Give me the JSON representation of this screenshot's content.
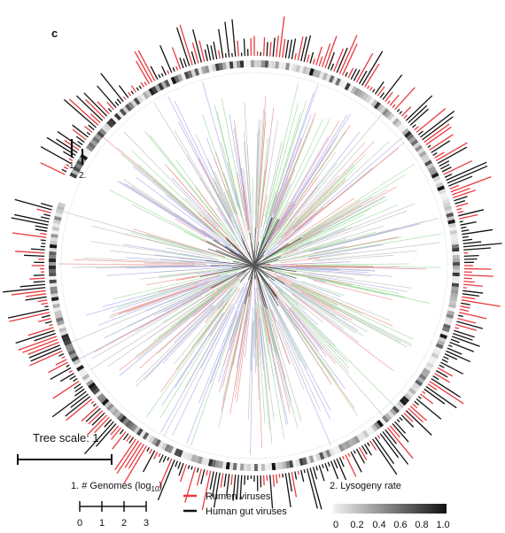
{
  "panel_label": "c",
  "tree_scale": {
    "label": "Tree scale: 1",
    "value": 1
  },
  "ring_labels": {
    "ring1": "1.",
    "ring2": "2."
  },
  "legend": {
    "genomes": {
      "title_prefix": "1. # Genomes (log",
      "title_sub": "10",
      "title_suffix": ")",
      "ticks": [
        "0",
        "1",
        "2",
        "3"
      ]
    },
    "series": [
      {
        "label": "Rumen viruses",
        "color": "#e8393f"
      },
      {
        "label": "Human gut viruses",
        "color": "#111111"
      }
    ],
    "lysogeny": {
      "title": "2. Lysogeny rate",
      "ticks": [
        "0",
        "0.2",
        "0.4",
        "0.6",
        "0.8",
        "1.0"
      ],
      "range": [
        0,
        1
      ]
    }
  },
  "colors": {
    "rumen": "#e8393f",
    "human_gut": "#111111",
    "branch_palette": [
      "#9bd89b",
      "#f08a8a",
      "#a8a8e6",
      "#bdbdbd"
    ]
  }
}
